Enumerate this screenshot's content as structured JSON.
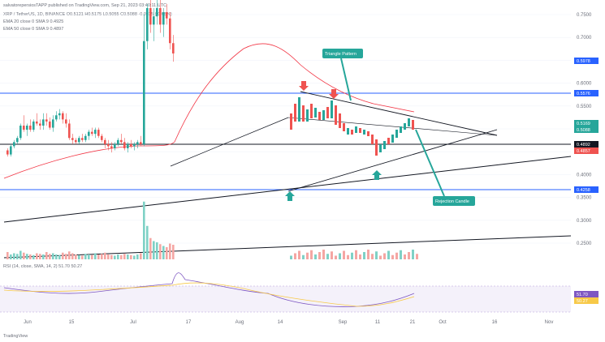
{
  "header": {
    "line1": "salvatorepersiosTAPP published on TradingView.com, Sep 21, 2023 03:40:11 UTC",
    "line2": "XRP / TetherUS, 1D, BINANCE  O0.5121  H0.5175  L0.5055  C0.5088  -0.0035 (-0.68%)",
    "line3": "EMA  20  close  0  SMA  9  0.4925",
    "line4": "EMA  50  close  0  SMA  9  0.4897"
  },
  "footer": {
    "brand": "TradingView"
  },
  "rsi_header": "RSI (14, close, SMA, 14, 2)  51.70  50.27",
  "annotations": {
    "pattern": "Triangle Pattern",
    "candle": "Rejection Candle"
  },
  "price_labels": {
    "top": "0.5978",
    "upper_resistance": "0.5576",
    "price_a": "0.5169",
    "price_b": "0.5088",
    "level_a": "0.4892",
    "level_b": "0.4857",
    "support": "0.4258",
    "rsi_a": "51.70",
    "rsi_b": "50.27"
  },
  "colors": {
    "bull": "#26a69a",
    "bear": "#ef5350",
    "ema": "#f23645",
    "resistance": "#2962ff",
    "rsi": "#7e57c2",
    "rsi_sma": "#f7c948",
    "annotation_bg": "#26a69a",
    "trendline": "#131722"
  },
  "chart_data": {
    "type": "candlestick",
    "title": "XRP / TetherUS, 1D, BINANCE",
    "x_ticks": [
      "Jun",
      "15",
      "Jul",
      "17",
      "Aug",
      "14",
      "Sep",
      "11",
      "21",
      "Oct",
      "16",
      "Nov"
    ],
    "y_ticks": [
      "0.7500",
      "0.7000",
      "0.6500",
      "0.6000",
      "0.5500",
      "0.5000",
      "0.4500",
      "0.4000",
      "0.3500",
      "0.3000",
      "0.2500"
    ],
    "ylim": [
      0.23,
      0.8
    ],
    "ohlc": [
      [
        0.455,
        0.46,
        0.44,
        0.445
      ],
      [
        0.445,
        0.47,
        0.44,
        0.465
      ],
      [
        0.465,
        0.48,
        0.46,
        0.475
      ],
      [
        0.475,
        0.49,
        0.47,
        0.485
      ],
      [
        0.485,
        0.52,
        0.48,
        0.515
      ],
      [
        0.515,
        0.54,
        0.5,
        0.505
      ],
      [
        0.505,
        0.52,
        0.49,
        0.515
      ],
      [
        0.515,
        0.53,
        0.5,
        0.505
      ],
      [
        0.505,
        0.53,
        0.5,
        0.525
      ],
      [
        0.525,
        0.545,
        0.515,
        0.52
      ],
      [
        0.52,
        0.53,
        0.505,
        0.515
      ],
      [
        0.515,
        0.545,
        0.505,
        0.53
      ],
      [
        0.53,
        0.545,
        0.515,
        0.525
      ],
      [
        0.525,
        0.535,
        0.505,
        0.51
      ],
      [
        0.51,
        0.54,
        0.5,
        0.53
      ],
      [
        0.53,
        0.55,
        0.525,
        0.54
      ],
      [
        0.54,
        0.555,
        0.53,
        0.545
      ],
      [
        0.545,
        0.55,
        0.52,
        0.53
      ],
      [
        0.53,
        0.545,
        0.51,
        0.52
      ],
      [
        0.52,
        0.53,
        0.48,
        0.485
      ],
      [
        0.485,
        0.495,
        0.47,
        0.48
      ],
      [
        0.48,
        0.485,
        0.47,
        0.475
      ],
      [
        0.475,
        0.49,
        0.47,
        0.485
      ],
      [
        0.485,
        0.495,
        0.475,
        0.48
      ],
      [
        0.48,
        0.495,
        0.475,
        0.49
      ],
      [
        0.49,
        0.505,
        0.48,
        0.5
      ],
      [
        0.5,
        0.51,
        0.49,
        0.495
      ],
      [
        0.495,
        0.51,
        0.485,
        0.505
      ],
      [
        0.505,
        0.51,
        0.485,
        0.49
      ],
      [
        0.49,
        0.495,
        0.475,
        0.48
      ],
      [
        0.48,
        0.485,
        0.46,
        0.47
      ],
      [
        0.47,
        0.48,
        0.455,
        0.465
      ],
      [
        0.465,
        0.475,
        0.45,
        0.46
      ],
      [
        0.46,
        0.475,
        0.455,
        0.47
      ],
      [
        0.47,
        0.485,
        0.465,
        0.48
      ],
      [
        0.48,
        0.495,
        0.47,
        0.475
      ],
      [
        0.475,
        0.485,
        0.455,
        0.46
      ],
      [
        0.46,
        0.475,
        0.45,
        0.47
      ],
      [
        0.47,
        0.48,
        0.46,
        0.465
      ],
      [
        0.465,
        0.475,
        0.455,
        0.47
      ],
      [
        0.47,
        0.48,
        0.46,
        0.475
      ],
      [
        0.475,
        0.49,
        0.465,
        0.47
      ],
      [
        0.47,
        0.785,
        0.465,
        0.72
      ],
      [
        0.72,
        0.81,
        0.7,
        0.8
      ],
      [
        0.8,
        0.85,
        0.74,
        0.76
      ],
      [
        0.76,
        0.8,
        0.72,
        0.78
      ],
      [
        0.78,
        0.83,
        0.76,
        0.8
      ],
      [
        0.8,
        0.82,
        0.74,
        0.76
      ],
      [
        0.76,
        0.8,
        0.73,
        0.79
      ],
      [
        0.79,
        0.81,
        0.76,
        0.775
      ],
      [
        0.775,
        0.79,
        0.7,
        0.715
      ],
      [
        0.715,
        0.735,
        0.67,
        0.69
      ]
    ],
    "volume": [
      0.12,
      0.08,
      0.1,
      0.09,
      0.14,
      0.11,
      0.09,
      0.08,
      0.07,
      0.1,
      0.09,
      0.08,
      0.12,
      0.09,
      0.1,
      0.08,
      0.07,
      0.11,
      0.09,
      0.13,
      0.1,
      0.08,
      0.07,
      0.06,
      0.09,
      0.08,
      0.07,
      0.1,
      0.08,
      0.09,
      0.11,
      0.08,
      0.07,
      0.06,
      0.08,
      0.07,
      0.09,
      0.08,
      0.07,
      0.06,
      0.08,
      0.1,
      0.95,
      0.55,
      0.35,
      0.3,
      0.28,
      0.25,
      0.22,
      0.2,
      0.26,
      0.24
    ]
  }
}
